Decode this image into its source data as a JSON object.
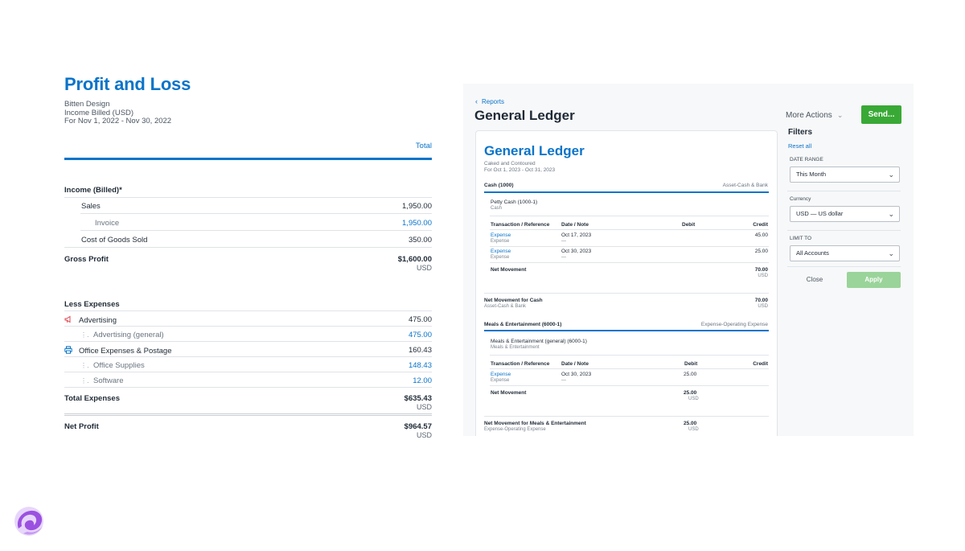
{
  "profit_loss": {
    "title": "Profit and Loss",
    "company": "Bitten Design",
    "basis": "Income Billed (USD)",
    "period": "For Nov 1, 2022 - Nov 30, 2022",
    "total_header": "Total",
    "income_label": "Income (Billed)*",
    "sales_label": "Sales",
    "sales_value": "1,950.00",
    "invoice_label": "Invoice",
    "invoice_value": "1,950.00",
    "cogs_label": "Cost of Goods Sold",
    "cogs_value": "350.00",
    "gross_profit_label": "Gross Profit",
    "gross_profit_value": "$1,600.00",
    "gross_profit_currency": "USD",
    "less_expenses_label": "Less Expenses",
    "advertising_label": "Advertising",
    "advertising_value": "475.00",
    "advertising_general_label": "Advertising (general)",
    "advertising_general_value": "475.00",
    "office_label": "Office Expenses & Postage",
    "office_value": "160.43",
    "office_supplies_label": "Office Supplies",
    "office_supplies_value": "148.43",
    "software_label": "Software",
    "software_value": "12.00",
    "total_expenses_label": "Total Expenses",
    "total_expenses_value": "$635.43",
    "total_expenses_currency": "USD",
    "net_profit_label": "Net Profit",
    "net_profit_value": "$964.57",
    "net_profit_currency": "USD"
  },
  "general_ledger": {
    "back_label": "Reports",
    "page_title": "General Ledger",
    "more_actions_label": "More Actions",
    "send_label": "Send...",
    "card": {
      "title": "General Ledger",
      "company": "Caked and Contoured",
      "period": "For Oct 1, 2023 - Oct 31, 2023",
      "cash_section": "Cash (1000)",
      "cash_type": "Asset-Cash & Bank",
      "petty_cash": "Petty Cash (1000-1)",
      "petty_cash_sub": "Cash",
      "col_transaction": "Transaction / Reference",
      "col_date": "Date / Note",
      "col_debit": "Debit",
      "col_credit": "Credit",
      "tx1_type": "Expense",
      "tx1_ref": "Expense",
      "tx1_date": "Oct 17, 2023",
      "tx1_note": "—",
      "tx1_credit": "45.00",
      "tx2_type": "Expense",
      "tx2_ref": "Expense",
      "tx2_date": "Oct 30, 2023",
      "tx2_note": "—",
      "tx2_credit": "25.00",
      "net_movement_label": "Net Movement",
      "net_movement_value": "70.00",
      "net_movement_currency": "USD",
      "net_cash_label": "Net Movement for Cash",
      "net_cash_sub": "Asset-Cash & Bank",
      "net_cash_value": "70.00",
      "net_cash_currency": "USD",
      "meals_section": "Meals & Entertainment (6000-1)",
      "meals_type": "Expense-Operating Expense",
      "meals_general": "Meals & Entertainment (general) (6000-1)",
      "meals_general_sub": "Meals & Entertainment",
      "col_transaction_2": "Transaction / Reference",
      "col_date_2": "Date / Note",
      "col_debit_2": "Debit",
      "col_credit_2": "Credit",
      "tx3_type": "Expense",
      "tx3_ref": "Expense",
      "tx3_date": "Oct 30, 2023",
      "tx3_note": "—",
      "tx3_debit": "25.00",
      "net_movement_2_label": "Net Movement",
      "net_movement_2_value": "25.00",
      "net_movement_2_currency": "USD",
      "net_meals_label": "Net Movement for Meals & Entertainment",
      "net_meals_sub": "Expense-Operating Expense",
      "net_meals_value": "25.00",
      "net_meals_currency": "USD"
    },
    "filters": {
      "title": "Filters",
      "reset_label": "Reset all",
      "date_range_label": "DATE RANGE",
      "date_range_value": "This Month",
      "currency_label": "Currency",
      "currency_value": "USD — US dollar",
      "limit_label": "LIMIT TO",
      "limit_value": "All Accounts",
      "close_label": "Close",
      "apply_label": "Apply"
    }
  },
  "colors": {
    "accent_blue": "#0a74c9",
    "send_green": "#39a935",
    "apply_green": "#9ad49a",
    "logo_purple": "#9b51e0"
  }
}
